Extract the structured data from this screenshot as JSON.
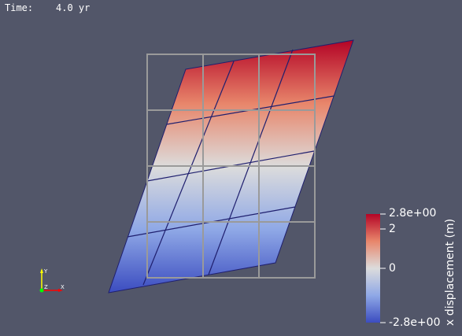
{
  "time_annotation": {
    "label": "Time:",
    "value": "4.0 yr"
  },
  "colorbar": {
    "title": "x displacement (m)",
    "max_label": "2.8e+00",
    "min_label": "-2.8e+00",
    "ticks": [
      "2",
      "0"
    ],
    "colors": {
      "max": "#b40426",
      "mid": "#dddddd",
      "min": "#3b4cc0"
    }
  },
  "axes_triad": {
    "y_label": "Y",
    "z_label": "Z",
    "x_label": "X",
    "colors": {
      "x": "#ff0000",
      "y": "#ffff00",
      "z": "#00ff00"
    }
  },
  "colors": {
    "background": "#525669",
    "mesh_edges": "#1f1f6e",
    "reference_grid": "#9a9a9a"
  }
}
